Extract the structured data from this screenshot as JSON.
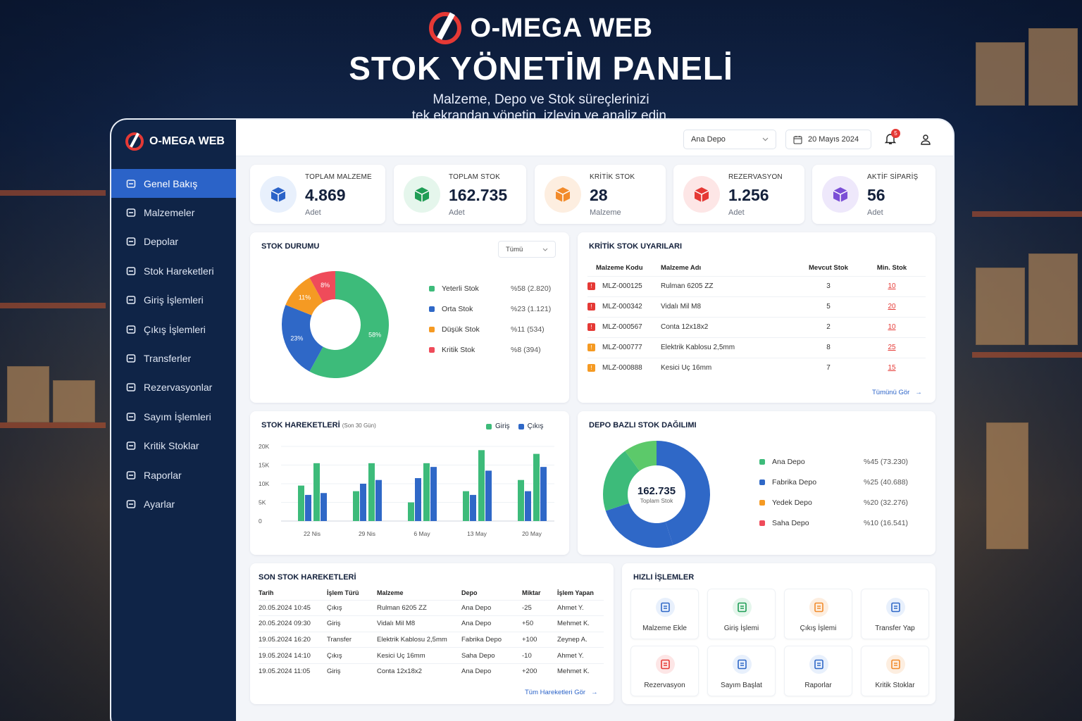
{
  "hero": {
    "brand": "O-MEGA WEB",
    "title": "STOK YÖNETİM PANELİ",
    "subtitle_line1": "Malzeme, Depo ve Stok süreçlerinizi",
    "subtitle_line2": "tek ekrandan yönetin, izleyin ve analiz edin."
  },
  "sidebar": {
    "brand": "O-MEGA WEB",
    "items": [
      {
        "label": "Genel Bakış",
        "icon": "home-icon",
        "active": true
      },
      {
        "label": "Malzemeler",
        "icon": "box-icon"
      },
      {
        "label": "Depolar",
        "icon": "warehouse-icon"
      },
      {
        "label": "Stok Hareketleri",
        "icon": "transfer-icon"
      },
      {
        "label": "Giriş İşlemleri",
        "icon": "inbox-in-icon"
      },
      {
        "label": "Çıkış İşlemleri",
        "icon": "inbox-out-icon"
      },
      {
        "label": "Transferler",
        "icon": "truck-icon"
      },
      {
        "label": "Rezervasyonlar",
        "icon": "calendar-icon"
      },
      {
        "label": "Sayım İşlemleri",
        "icon": "clipboard-icon"
      },
      {
        "label": "Kritik Stoklar",
        "icon": "warning-icon"
      },
      {
        "label": "Raporlar",
        "icon": "report-icon"
      },
      {
        "label": "Ayarlar",
        "icon": "gear-icon"
      }
    ]
  },
  "topbar": {
    "depo_select": "Ana Depo",
    "date": "20 Mayıs 2024",
    "notifications": "5"
  },
  "kpis": [
    {
      "label": "TOPLAM MALZEME",
      "value": "4.869",
      "unit": "Adet",
      "color": "#2b63c8",
      "bg": "#e8f0fc"
    },
    {
      "label": "TOPLAM STOK",
      "value": "162.735",
      "unit": "Adet",
      "color": "#1f9d55",
      "bg": "#e5f6ec"
    },
    {
      "label": "KRİTİK STOK",
      "value": "28",
      "unit": "Malzeme",
      "color": "#f28b2b",
      "bg": "#fdeee0"
    },
    {
      "label": "REZERVASYON",
      "value": "1.256",
      "unit": "Adet",
      "color": "#e53935",
      "bg": "#fde6e6"
    },
    {
      "label": "AKTİF SİPARİŞ",
      "value": "56",
      "unit": "Adet",
      "color": "#7b4fd6",
      "bg": "#eee8fb"
    }
  ],
  "stock_status": {
    "title": "STOK DURUMU",
    "filter": "Tümü",
    "slices": [
      {
        "name": "Yeterli Stok",
        "pct": 58,
        "label": "58%",
        "value": "%58 (2.820)",
        "color": "#3dbb7a"
      },
      {
        "name": "Orta Stok",
        "pct": 23,
        "label": "23%",
        "value": "%23 (1.121)",
        "color": "#2f68c7"
      },
      {
        "name": "Düşük Stok",
        "pct": 11,
        "label": "11%",
        "value": "%11 (534)",
        "color": "#f59a23"
      },
      {
        "name": "Kritik Stok",
        "pct": 8,
        "label": "8%",
        "value": "%8 (394)",
        "color": "#ef4b5a"
      }
    ]
  },
  "critical": {
    "title": "KRİTİK STOK UYARILARI",
    "headers": [
      "Malzeme Kodu",
      "Malzeme Adı",
      "Mevcut Stok",
      "Min. Stok"
    ],
    "rows": [
      {
        "code": "MLZ-000125",
        "name": "Rulman 6205 ZZ",
        "current": "3",
        "min": "10",
        "level": "red"
      },
      {
        "code": "MLZ-000342",
        "name": "Vidalı Mil M8",
        "current": "5",
        "min": "20",
        "level": "red"
      },
      {
        "code": "MLZ-000567",
        "name": "Conta 12x18x2",
        "current": "2",
        "min": "10",
        "level": "red"
      },
      {
        "code": "MLZ-000777",
        "name": "Elektrik Kablosu 2,5mm",
        "current": "8",
        "min": "25",
        "level": "orange"
      },
      {
        "code": "MLZ-000888",
        "name": "Kesici Uç 16mm",
        "current": "7",
        "min": "15",
        "level": "orange"
      }
    ],
    "more": "Tümünü Gör"
  },
  "movements_chart": {
    "title": "STOK HAREKETLERİ",
    "subtitle": "(Son 30 Gün)",
    "legend": [
      "Giriş",
      "Çıkış"
    ]
  },
  "chart_data": [
    {
      "type": "bar",
      "title": "STOK HAREKETLERİ",
      "yticks": [
        "20K",
        "15K",
        "10K",
        "5K",
        "0"
      ],
      "ylim": [
        0,
        20000
      ],
      "xticks": [
        "22 Nis",
        "29 Nis",
        "6 May",
        "13 May",
        "20 May"
      ],
      "series": [
        {
          "name": "Giriş",
          "color": "#3dbb7a",
          "values": [
            9500,
            15500,
            8000,
            15500,
            5000,
            15500,
            8000,
            19000,
            11000,
            18000
          ]
        },
        {
          "name": "Çıkış",
          "color": "#2f68c7",
          "values": [
            7000,
            7500,
            10000,
            11000,
            11500,
            14500,
            7000,
            13500,
            8000,
            14500
          ]
        }
      ]
    },
    {
      "type": "pie",
      "title": "DEPO BAZLI STOK DAĞILIMI",
      "center_value": "162.735",
      "center_label": "Toplam Stok",
      "slices": [
        {
          "name": "Ana Depo",
          "pct": 45,
          "value": "%45 (73.230)",
          "color": "#2f68c7"
        },
        {
          "name": "Fabrika Depo",
          "pct": 25,
          "value": "%25 (40.688)",
          "color": "#2f68c7"
        },
        {
          "name": "Yedek Depo",
          "pct": 20,
          "value": "%20 (32.276)",
          "color": "#3dbb7a"
        },
        {
          "name": "Saha Depo",
          "pct": 10,
          "value": "%10 (16.541)",
          "color": "#5cc96a"
        }
      ],
      "legend_colors": [
        "#3dbb7a",
        "#2f68c7",
        "#f59a23",
        "#ef4b5a"
      ]
    }
  ],
  "recent": {
    "title": "SON STOK HAREKETLERİ",
    "headers": [
      "Tarih",
      "İşlem Türü",
      "Malzeme",
      "Depo",
      "Miktar",
      "İşlem Yapan"
    ],
    "rows": [
      {
        "date": "20.05.2024 10:45",
        "type": "Çıkış",
        "kind": "out",
        "item": "Rulman 6205 ZZ",
        "depo": "Ana Depo",
        "qty": "-25",
        "user": "Ahmet Y."
      },
      {
        "date": "20.05.2024 09:30",
        "type": "Giriş",
        "kind": "in",
        "item": "Vidalı Mil M8",
        "depo": "Ana Depo",
        "qty": "+50",
        "user": "Mehmet K."
      },
      {
        "date": "19.05.2024 16:20",
        "type": "Transfer",
        "kind": "tr",
        "item": "Elektrik Kablosu 2,5mm",
        "depo": "Fabrika Depo",
        "qty": "+100",
        "user": "Zeynep A."
      },
      {
        "date": "19.05.2024 14:10",
        "type": "Çıkış",
        "kind": "out",
        "item": "Kesici Uç 16mm",
        "depo": "Saha Depo",
        "qty": "-10",
        "user": "Ahmet Y."
      },
      {
        "date": "19.05.2024 11:05",
        "type": "Giriş",
        "kind": "in",
        "item": "Conta 12x18x2",
        "depo": "Ana Depo",
        "qty": "+200",
        "user": "Mehmet K."
      }
    ],
    "more": "Tüm Hareketleri Gör"
  },
  "quick": {
    "title": "HIZLI İŞLEMLER",
    "actions": [
      {
        "label": "Malzeme Ekle",
        "icon": "add-item-icon",
        "color": "#2f68c7",
        "bg": "#e8f0fc"
      },
      {
        "label": "Giriş İşlemi",
        "icon": "inbound-icon",
        "color": "#1f9d55",
        "bg": "#e5f6ec"
      },
      {
        "label": "Çıkış İşlemi",
        "icon": "outbound-icon",
        "color": "#f28b2b",
        "bg": "#fdeee0"
      },
      {
        "label": "Transfer Yap",
        "icon": "transfer-icon",
        "color": "#2f68c7",
        "bg": "#e8f0fc"
      },
      {
        "label": "Rezervasyon",
        "icon": "reservation-icon",
        "color": "#e53935",
        "bg": "#fde6e6"
      },
      {
        "label": "Sayım Başlat",
        "icon": "count-icon",
        "color": "#2f68c7",
        "bg": "#e8f0fc"
      },
      {
        "label": "Raporlar",
        "icon": "report-icon",
        "color": "#2f68c7",
        "bg": "#e8f0fc"
      },
      {
        "label": "Kritik Stoklar",
        "icon": "warning-icon",
        "color": "#f28b2b",
        "bg": "#fdeee0"
      }
    ]
  }
}
